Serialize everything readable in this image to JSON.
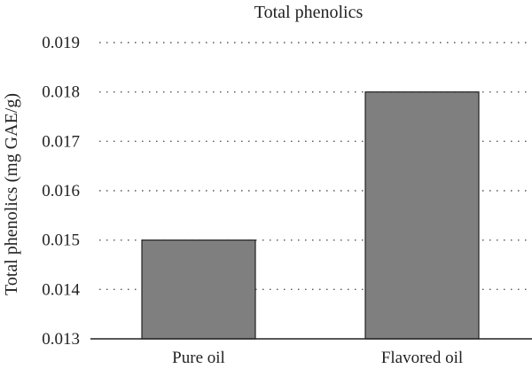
{
  "chart_data": {
    "type": "bar",
    "title": "Total phenolics",
    "xlabel": "",
    "ylabel": "Total phenolics (mg GAE/g)",
    "categories": [
      "Pure oil",
      "Flavored oil"
    ],
    "values": [
      0.015,
      0.018
    ],
    "ylim": [
      0.013,
      0.019
    ],
    "yticks": [
      "0.013",
      "0.014",
      "0.015",
      "0.016",
      "0.017",
      "0.018",
      "0.019"
    ],
    "grid": "horizontal dotted",
    "bar_color": "#7f7f7f"
  }
}
